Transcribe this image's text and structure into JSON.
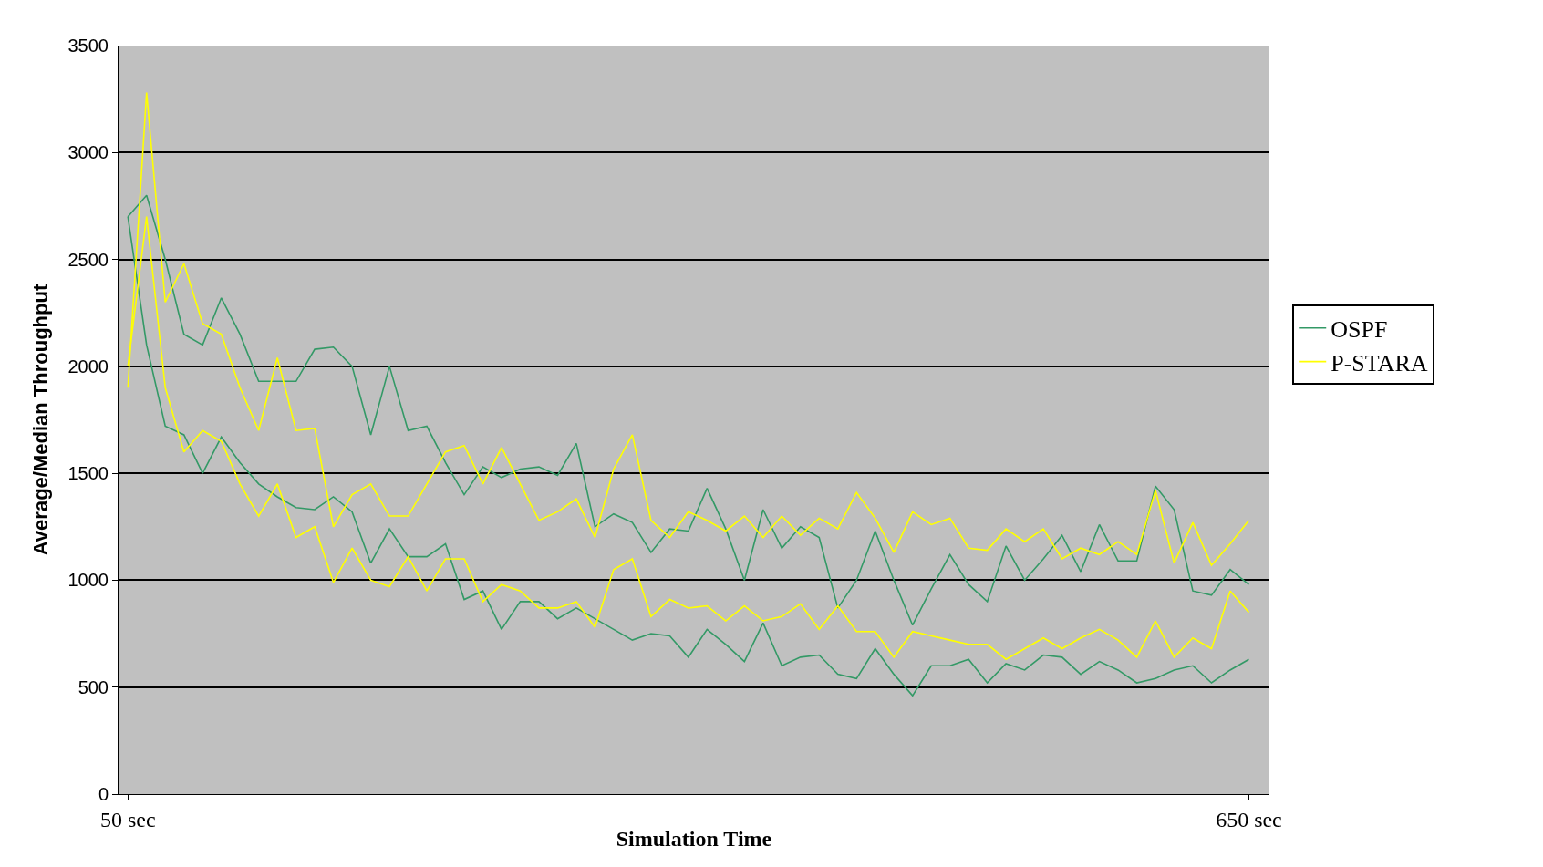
{
  "chart_data": {
    "type": "line",
    "xlabel": "Simulation Time",
    "ylabel": "Average/Median Throughput",
    "x": [
      50,
      60,
      70,
      80,
      90,
      100,
      110,
      120,
      130,
      140,
      150,
      160,
      170,
      180,
      190,
      200,
      210,
      220,
      230,
      240,
      250,
      260,
      270,
      280,
      290,
      300,
      310,
      320,
      330,
      340,
      350,
      360,
      370,
      380,
      390,
      400,
      410,
      420,
      430,
      440,
      450,
      460,
      470,
      480,
      490,
      500,
      510,
      520,
      530,
      540,
      550,
      560,
      570,
      580,
      590,
      600,
      610,
      620,
      630,
      640,
      650
    ],
    "xlim": [
      45,
      661
    ],
    "xticks": [
      {
        "value": 50,
        "label": "50 sec"
      },
      {
        "value": 650,
        "label": "650 sec"
      }
    ],
    "ylim": [
      0,
      3500
    ],
    "yticks": [
      0,
      500,
      1000,
      1500,
      2000,
      2500,
      3000,
      3500
    ],
    "grid": "y",
    "legend": "right",
    "marker": "none",
    "line_style": "solid",
    "series": [
      {
        "name": "OSPF",
        "color": "#339966",
        "values": [
          2700,
          2800,
          2500,
          2150,
          2100,
          2320,
          2150,
          1930,
          1930,
          1930,
          2080,
          2090,
          2000,
          1680,
          2000,
          1700,
          1720,
          1550,
          1400,
          1530,
          1480,
          1520,
          1530,
          1490,
          1640,
          1250,
          1310,
          1270,
          1130,
          1240,
          1230,
          1430,
          1240,
          1000,
          1330,
          1150,
          1250,
          1200,
          870,
          1000,
          1230,
          1000,
          790,
          960,
          1120,
          980,
          900,
          1160,
          1000,
          1100,
          1210,
          1040,
          1260,
          1090,
          1090,
          1440,
          1330,
          950,
          930,
          1050,
          980
        ]
      },
      {
        "color": "#339966",
        "values": [
          2700,
          2100,
          1720,
          1680,
          1500,
          1670,
          1550,
          1450,
          1390,
          1340,
          1330,
          1390,
          1320,
          1080,
          1240,
          1110,
          1110,
          1170,
          910,
          950,
          770,
          900,
          900,
          820,
          870,
          820,
          770,
          720,
          750,
          740,
          640,
          770,
          700,
          620,
          800,
          600,
          640,
          650,
          560,
          540,
          680,
          560,
          460,
          600,
          600,
          630,
          520,
          610,
          580,
          650,
          640,
          560,
          620,
          580,
          520,
          540,
          580,
          600,
          520,
          580,
          630
        ]
      },
      {
        "name": "P-STARA",
        "color": "#ffff00",
        "values": [
          1900,
          3280,
          2300,
          2480,
          2200,
          2150,
          1900,
          1700,
          2040,
          1700,
          1710,
          1250,
          1400,
          1450,
          1300,
          1300,
          1450,
          1600,
          1630,
          1450,
          1620,
          1450,
          1280,
          1320,
          1380,
          1200,
          1520,
          1680,
          1280,
          1200,
          1320,
          1280,
          1230,
          1300,
          1200,
          1300,
          1210,
          1290,
          1240,
          1410,
          1290,
          1130,
          1320,
          1260,
          1290,
          1150,
          1140,
          1240,
          1180,
          1240,
          1100,
          1150,
          1120,
          1180,
          1120,
          1420,
          1080,
          1270,
          1070,
          1170,
          1280
        ]
      },
      {
        "color": "#ffff00",
        "values": [
          2000,
          2700,
          1900,
          1600,
          1700,
          1650,
          1450,
          1300,
          1450,
          1200,
          1250,
          990,
          1150,
          1000,
          970,
          1110,
          950,
          1100,
          1100,
          900,
          980,
          950,
          870,
          870,
          900,
          780,
          1050,
          1100,
          830,
          910,
          870,
          880,
          810,
          880,
          810,
          830,
          890,
          770,
          880,
          760,
          760,
          640,
          760,
          740,
          720,
          700,
          700,
          630,
          680,
          730,
          680,
          730,
          770,
          720,
          640,
          810,
          640,
          730,
          680,
          950,
          850
        ]
      }
    ]
  }
}
